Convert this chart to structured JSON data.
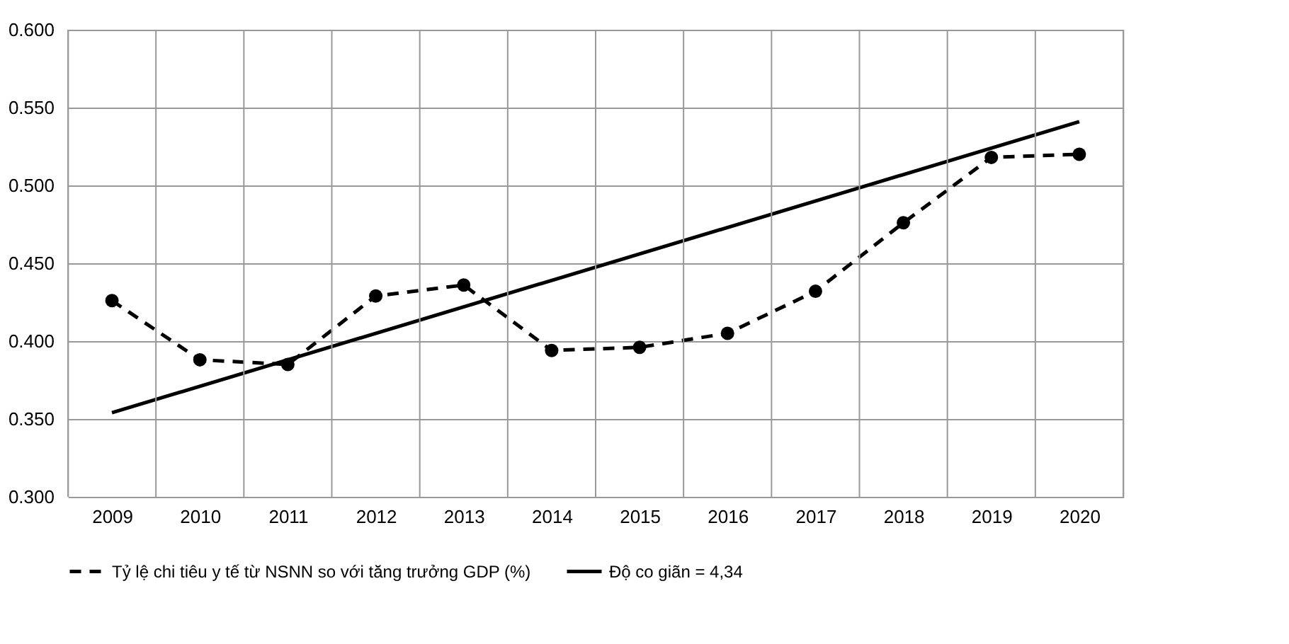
{
  "chart_data": {
    "type": "line",
    "categories": [
      "2009",
      "2010",
      "2011",
      "2012",
      "2013",
      "2014",
      "2015",
      "2016",
      "2017",
      "2018",
      "2019",
      "2020"
    ],
    "series": [
      {
        "name": "Tỷ lệ chi tiêu y tế từ NSNN so với tăng trưởng GDP (%)",
        "color": "#000000",
        "line_style": "dashed",
        "marker": "circle",
        "values": [
          0.426,
          0.388,
          0.385,
          0.429,
          0.436,
          0.394,
          0.396,
          0.405,
          0.432,
          0.476,
          0.518,
          0.52
        ]
      },
      {
        "name": "Độ co giãn = 4,34",
        "color": "#000000",
        "line_style": "solid",
        "marker": "none",
        "values": [
          0.354,
          null,
          null,
          null,
          null,
          null,
          null,
          null,
          null,
          null,
          null,
          0.541
        ]
      }
    ],
    "ylim": [
      0.3,
      0.6
    ],
    "yticks": [
      {
        "value": 0.3,
        "label": "0.300"
      },
      {
        "value": 0.35,
        "label": "0.350"
      },
      {
        "value": 0.4,
        "label": "0.400"
      },
      {
        "value": 0.45,
        "label": "0.450"
      },
      {
        "value": 0.5,
        "label": "0.500"
      },
      {
        "value": 0.55,
        "label": "0.550"
      },
      {
        "value": 0.6,
        "label": "0.600"
      }
    ],
    "grid": true,
    "legend": "bottom"
  }
}
